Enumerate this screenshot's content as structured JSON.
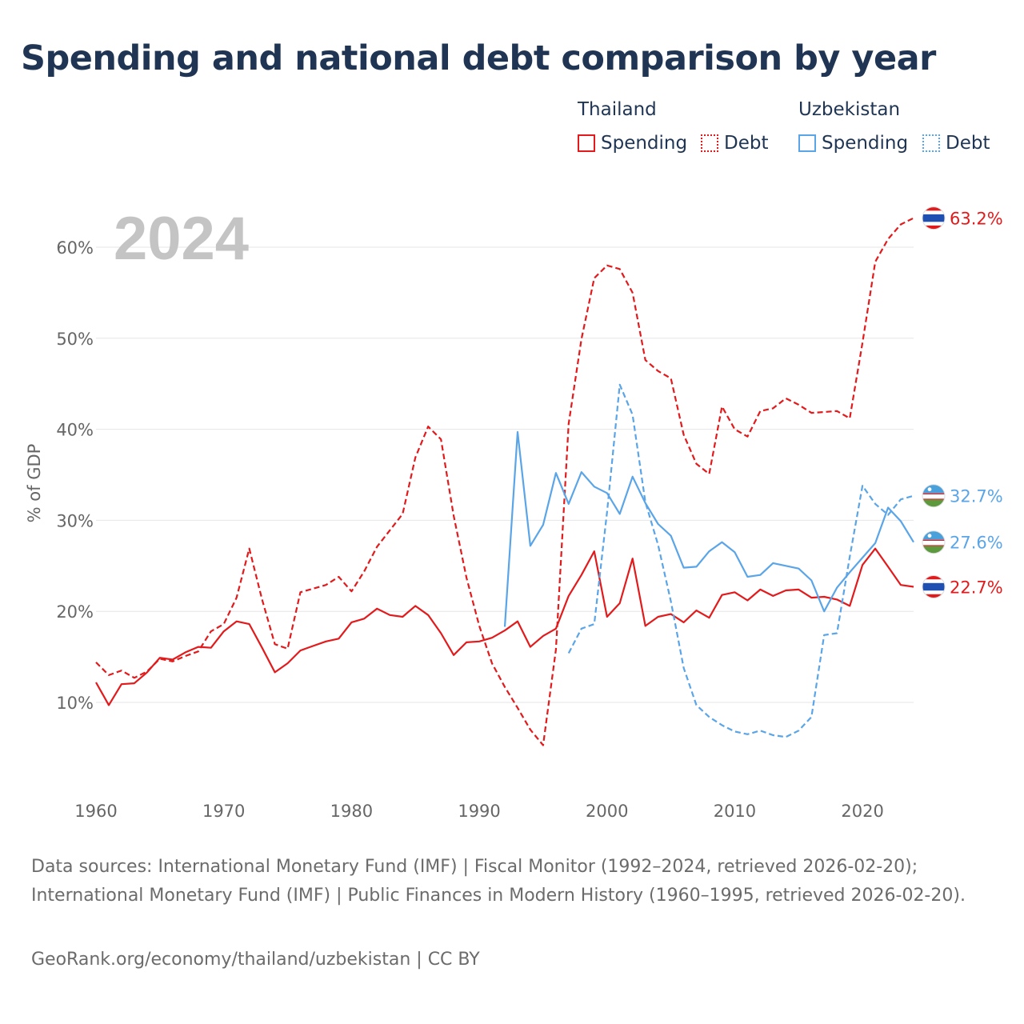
{
  "title": "Spending and national debt comparison by year",
  "year_label": "2024",
  "legend": {
    "groups": [
      {
        "name": "Thailand",
        "color": "#e31a1c",
        "spending_label": "Spending",
        "debt_label": "Debt"
      },
      {
        "name": "Uzbekistan",
        "color": "#5aa5e8",
        "spending_label": "Spending",
        "debt_label": "Debt"
      }
    ]
  },
  "footer": {
    "sources": "Data sources: International Monetary Fund (IMF) | Fiscal Monitor (1992–2024, retrieved 2026-02-20); International Monetary Fund (IMF) | Public Finances in Modern History (1960–1995, retrieved 2026-02-20).",
    "credit": "GeoRank.org/economy/thailand/uzbekistan | CC BY"
  },
  "chart_data": {
    "type": "line",
    "title": "Spending and national debt comparison by year",
    "xlabel": "",
    "ylabel": "% of GDP",
    "xlim": [
      1960,
      2024
    ],
    "ylim": [
      0,
      65
    ],
    "x_ticks": [
      1960,
      1970,
      1980,
      1990,
      2000,
      2010,
      2020
    ],
    "y_ticks": [
      10,
      20,
      30,
      40,
      50,
      60
    ],
    "y_tick_labels": [
      "10%",
      "20%",
      "30%",
      "40%",
      "50%",
      "60%"
    ],
    "grid": true,
    "series": [
      {
        "name": "Thailand Spending",
        "country": "Thailand",
        "style": "solid",
        "color": "#e31a1c",
        "end_label": "22.7%",
        "points": [
          [
            1960,
            12.2
          ],
          [
            1961,
            9.7
          ],
          [
            1962,
            12.0
          ],
          [
            1963,
            12.1
          ],
          [
            1964,
            13.3
          ],
          [
            1965,
            14.9
          ],
          [
            1966,
            14.7
          ],
          [
            1967,
            15.5
          ],
          [
            1968,
            16.1
          ],
          [
            1969,
            16.0
          ],
          [
            1970,
            17.8
          ],
          [
            1971,
            18.9
          ],
          [
            1972,
            18.6
          ],
          [
            1973,
            16.0
          ],
          [
            1974,
            13.3
          ],
          [
            1975,
            14.3
          ],
          [
            1976,
            15.7
          ],
          [
            1977,
            16.2
          ],
          [
            1978,
            16.7
          ],
          [
            1979,
            17.0
          ],
          [
            1980,
            18.8
          ],
          [
            1981,
            19.2
          ],
          [
            1982,
            20.3
          ],
          [
            1983,
            19.6
          ],
          [
            1984,
            19.4
          ],
          [
            1985,
            20.6
          ],
          [
            1986,
            19.6
          ],
          [
            1987,
            17.6
          ],
          [
            1988,
            15.2
          ],
          [
            1989,
            16.6
          ],
          [
            1990,
            16.7
          ],
          [
            1991,
            17.1
          ],
          [
            1992,
            17.9
          ],
          [
            1993,
            18.9
          ],
          [
            1994,
            16.1
          ],
          [
            1995,
            17.3
          ],
          [
            1996,
            18.1
          ],
          [
            1997,
            21.7
          ],
          [
            1998,
            24.0
          ],
          [
            1999,
            26.6
          ],
          [
            2000,
            19.4
          ],
          [
            2001,
            20.9
          ],
          [
            2002,
            25.8
          ],
          [
            2003,
            18.4
          ],
          [
            2004,
            19.4
          ],
          [
            2005,
            19.7
          ],
          [
            2006,
            18.8
          ],
          [
            2007,
            20.1
          ],
          [
            2008,
            19.3
          ],
          [
            2009,
            21.8
          ],
          [
            2010,
            22.1
          ],
          [
            2011,
            21.2
          ],
          [
            2012,
            22.4
          ],
          [
            2013,
            21.7
          ],
          [
            2014,
            22.3
          ],
          [
            2015,
            22.4
          ],
          [
            2016,
            21.5
          ],
          [
            2017,
            21.6
          ],
          [
            2018,
            21.3
          ],
          [
            2019,
            20.6
          ],
          [
            2020,
            25.1
          ],
          [
            2021,
            26.9
          ],
          [
            2022,
            24.9
          ],
          [
            2023,
            22.9
          ],
          [
            2024,
            22.7
          ]
        ]
      },
      {
        "name": "Thailand Debt",
        "country": "Thailand",
        "style": "dashed",
        "color": "#e31a1c",
        "end_label": "63.2%",
        "points": [
          [
            1960,
            14.4
          ],
          [
            1961,
            13.0
          ],
          [
            1962,
            13.5
          ],
          [
            1963,
            12.7
          ],
          [
            1964,
            13.4
          ],
          [
            1965,
            14.8
          ],
          [
            1966,
            14.5
          ],
          [
            1967,
            15.1
          ],
          [
            1968,
            15.6
          ],
          [
            1969,
            17.8
          ],
          [
            1970,
            18.6
          ],
          [
            1971,
            21.5
          ],
          [
            1972,
            26.9
          ],
          [
            1973,
            21.3
          ],
          [
            1974,
            16.4
          ],
          [
            1975,
            15.9
          ],
          [
            1976,
            22.1
          ],
          [
            1977,
            22.5
          ],
          [
            1978,
            22.9
          ],
          [
            1979,
            23.8
          ],
          [
            1980,
            22.2
          ],
          [
            1981,
            24.4
          ],
          [
            1982,
            27.1
          ],
          [
            1983,
            28.9
          ],
          [
            1984,
            30.7
          ],
          [
            1985,
            36.9
          ],
          [
            1986,
            40.3
          ],
          [
            1987,
            38.9
          ],
          [
            1988,
            30.5
          ],
          [
            1989,
            23.7
          ],
          [
            1990,
            18.4
          ],
          [
            1991,
            14.3
          ],
          [
            1992,
            11.7
          ],
          [
            1993,
            9.4
          ],
          [
            1994,
            7.0
          ],
          [
            1995,
            5.3
          ],
          [
            1996,
            15.8
          ],
          [
            1997,
            40.6
          ],
          [
            1998,
            49.9
          ],
          [
            1999,
            56.6
          ],
          [
            2000,
            58.0
          ],
          [
            2001,
            57.6
          ],
          [
            2002,
            55.0
          ],
          [
            2003,
            47.6
          ],
          [
            2004,
            46.4
          ],
          [
            2005,
            45.6
          ],
          [
            2006,
            39.4
          ],
          [
            2007,
            36.2
          ],
          [
            2008,
            35.1
          ],
          [
            2009,
            42.5
          ],
          [
            2010,
            40.0
          ],
          [
            2011,
            39.2
          ],
          [
            2012,
            42.0
          ],
          [
            2013,
            42.3
          ],
          [
            2014,
            43.4
          ],
          [
            2015,
            42.7
          ],
          [
            2016,
            41.8
          ],
          [
            2017,
            41.9
          ],
          [
            2018,
            42.0
          ],
          [
            2019,
            41.2
          ],
          [
            2020,
            49.5
          ],
          [
            2021,
            58.4
          ],
          [
            2022,
            60.9
          ],
          [
            2023,
            62.5
          ],
          [
            2024,
            63.2
          ]
        ]
      },
      {
        "name": "Uzbekistan Spending",
        "country": "Uzbekistan",
        "style": "solid",
        "color": "#5aa5e8",
        "end_label": "27.6%",
        "points": [
          [
            1992,
            18.3
          ],
          [
            1993,
            39.7
          ],
          [
            1994,
            27.2
          ],
          [
            1995,
            29.5
          ],
          [
            1996,
            35.2
          ],
          [
            1997,
            31.8
          ],
          [
            1998,
            35.3
          ],
          [
            1999,
            33.7
          ],
          [
            2000,
            33.0
          ],
          [
            2001,
            30.7
          ],
          [
            2002,
            34.8
          ],
          [
            2003,
            31.9
          ],
          [
            2004,
            29.6
          ],
          [
            2005,
            28.3
          ],
          [
            2006,
            24.8
          ],
          [
            2007,
            24.9
          ],
          [
            2008,
            26.6
          ],
          [
            2009,
            27.6
          ],
          [
            2010,
            26.5
          ],
          [
            2011,
            23.8
          ],
          [
            2012,
            24.0
          ],
          [
            2013,
            25.3
          ],
          [
            2014,
            25.0
          ],
          [
            2015,
            24.7
          ],
          [
            2016,
            23.4
          ],
          [
            2017,
            20.0
          ],
          [
            2018,
            22.6
          ],
          [
            2019,
            24.3
          ],
          [
            2020,
            25.9
          ],
          [
            2021,
            27.5
          ],
          [
            2022,
            31.4
          ],
          [
            2023,
            29.9
          ],
          [
            2024,
            27.6
          ]
        ]
      },
      {
        "name": "Uzbekistan Debt",
        "country": "Uzbekistan",
        "style": "dashed",
        "color": "#5aa5e8",
        "end_label": "32.7%",
        "points": [
          [
            1997,
            15.4
          ],
          [
            1998,
            18.1
          ],
          [
            1999,
            18.6
          ],
          [
            2000,
            30.9
          ],
          [
            2001,
            44.9
          ],
          [
            2002,
            41.6
          ],
          [
            2003,
            32.0
          ],
          [
            2004,
            27.3
          ],
          [
            2005,
            21.1
          ],
          [
            2006,
            13.8
          ],
          [
            2007,
            9.7
          ],
          [
            2008,
            8.4
          ],
          [
            2009,
            7.5
          ],
          [
            2010,
            6.8
          ],
          [
            2011,
            6.5
          ],
          [
            2012,
            6.9
          ],
          [
            2013,
            6.4
          ],
          [
            2014,
            6.2
          ],
          [
            2015,
            6.9
          ],
          [
            2016,
            8.4
          ],
          [
            2017,
            17.4
          ],
          [
            2018,
            17.6
          ],
          [
            2019,
            26.0
          ],
          [
            2020,
            33.8
          ],
          [
            2021,
            31.8
          ],
          [
            2022,
            30.6
          ],
          [
            2023,
            32.3
          ],
          [
            2024,
            32.7
          ]
        ]
      }
    ]
  }
}
